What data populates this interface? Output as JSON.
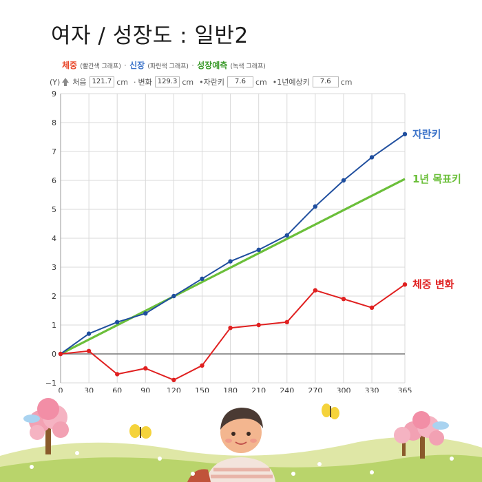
{
  "title": "여자 / 성장도 : 일반2",
  "legend": {
    "weight_label": "체중",
    "weight_note": "(빨간색 그래프)",
    "height_label": "신장",
    "height_note": "(파란색 그래프)",
    "predict_label": "성장예측",
    "predict_note": "(녹색 그래프)",
    "separator": "·"
  },
  "info": {
    "y_label": "(Y)",
    "start_label": "처음",
    "start_value": "121.7",
    "unit": "cm",
    "change_label": "변화",
    "change_value": "129.3",
    "grown_label": "•자란키",
    "grown_value": "7.6",
    "expected_label": "•1년예상키",
    "expected_value": "7.6"
  },
  "colors": {
    "height": "#1f4e9e",
    "weight": "#e02020",
    "target": "#6bbf3a",
    "weight_text": "#e8472a",
    "height_text": "#3a72c9",
    "predict_text": "#3a9a2a",
    "grid": "#d9d9d9",
    "zero_line": "#777777"
  },
  "chart_data": {
    "type": "line",
    "x": [
      0,
      30,
      60,
      90,
      120,
      150,
      180,
      210,
      240,
      270,
      300,
      330,
      365
    ],
    "xlim": [
      0,
      365
    ],
    "ylim": [
      -1,
      9
    ],
    "x_ticks": [
      0,
      30,
      60,
      90,
      120,
      150,
      180,
      210,
      240,
      270,
      300,
      330,
      365
    ],
    "y_ticks": [
      -1,
      0,
      1,
      2,
      3,
      4,
      5,
      6,
      7,
      8,
      9
    ],
    "grid": true,
    "series": [
      {
        "name": "자란키",
        "color": "#1f4e9e",
        "markers": true,
        "values": [
          0,
          0.7,
          1.1,
          1.4,
          2.0,
          2.6,
          3.2,
          3.6,
          4.1,
          5.1,
          6.0,
          6.8,
          7.6
        ]
      },
      {
        "name": "1년 목표키",
        "color": "#6bbf3a",
        "markers": false,
        "x": [
          0,
          365
        ],
        "values": [
          0,
          6.05
        ]
      },
      {
        "name": "체중 변화",
        "color": "#e02020",
        "markers": true,
        "values": [
          0,
          0.1,
          -0.7,
          -0.5,
          -0.9,
          -0.4,
          0.9,
          1.0,
          1.1,
          2.2,
          1.9,
          1.6,
          2.4
        ]
      }
    ]
  }
}
